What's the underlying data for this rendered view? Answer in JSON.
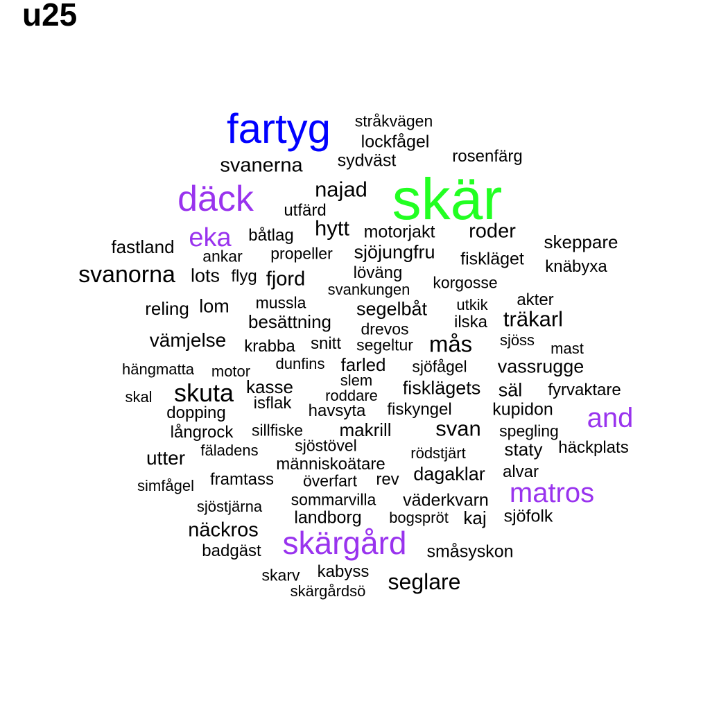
{
  "title": "u25",
  "colors": {
    "black": "#000000",
    "blue": "#0000ff",
    "green": "#22ff22",
    "purple": "#9933ee"
  },
  "words": [
    {
      "text": "skär",
      "color": "green"
    },
    {
      "text": "fartyg",
      "color": "blue"
    },
    {
      "text": "däck",
      "color": "purple"
    },
    {
      "text": "eka",
      "color": "purple"
    },
    {
      "text": "and",
      "color": "purple"
    },
    {
      "text": "matros",
      "color": "purple"
    },
    {
      "text": "skärgård",
      "color": "purple"
    },
    {
      "text": "stråkvägen",
      "color": "black"
    },
    {
      "text": "lockfågel",
      "color": "black"
    },
    {
      "text": "rosenfärg",
      "color": "black"
    },
    {
      "text": "sydväst",
      "color": "black"
    },
    {
      "text": "svanerna",
      "color": "black"
    },
    {
      "text": "najad",
      "color": "black"
    },
    {
      "text": "utfärd",
      "color": "black"
    },
    {
      "text": "hytt",
      "color": "black"
    },
    {
      "text": "motorjakt",
      "color": "black"
    },
    {
      "text": "roder",
      "color": "black"
    },
    {
      "text": "båtlag",
      "color": "black"
    },
    {
      "text": "skeppare",
      "color": "black"
    },
    {
      "text": "fastland",
      "color": "black"
    },
    {
      "text": "propeller",
      "color": "black"
    },
    {
      "text": "sjöjungfru",
      "color": "black"
    },
    {
      "text": "ankar",
      "color": "black"
    },
    {
      "text": "fiskläget",
      "color": "black"
    },
    {
      "text": "knäbyxa",
      "color": "black"
    },
    {
      "text": "svanorna",
      "color": "black"
    },
    {
      "text": "lots",
      "color": "black"
    },
    {
      "text": "flyg",
      "color": "black"
    },
    {
      "text": "fjord",
      "color": "black"
    },
    {
      "text": "löväng",
      "color": "black"
    },
    {
      "text": "korgosse",
      "color": "black"
    },
    {
      "text": "svankungen",
      "color": "black"
    },
    {
      "text": "akter",
      "color": "black"
    },
    {
      "text": "reling",
      "color": "black"
    },
    {
      "text": "lom",
      "color": "black"
    },
    {
      "text": "mussla",
      "color": "black"
    },
    {
      "text": "segelbåt",
      "color": "black"
    },
    {
      "text": "utkik",
      "color": "black"
    },
    {
      "text": "träkarl",
      "color": "black"
    },
    {
      "text": "besättning",
      "color": "black"
    },
    {
      "text": "ilska",
      "color": "black"
    },
    {
      "text": "drevos",
      "color": "black"
    },
    {
      "text": "vämjelse",
      "color": "black"
    },
    {
      "text": "sjöss",
      "color": "black"
    },
    {
      "text": "krabba",
      "color": "black"
    },
    {
      "text": "snitt",
      "color": "black"
    },
    {
      "text": "segeltur",
      "color": "black"
    },
    {
      "text": "mås",
      "color": "black"
    },
    {
      "text": "mast",
      "color": "black"
    },
    {
      "text": "hängmatta",
      "color": "black"
    },
    {
      "text": "dunfins",
      "color": "black"
    },
    {
      "text": "farled",
      "color": "black"
    },
    {
      "text": "sjöfågel",
      "color": "black"
    },
    {
      "text": "vassrugge",
      "color": "black"
    },
    {
      "text": "motor",
      "color": "black"
    },
    {
      "text": "slem",
      "color": "black"
    },
    {
      "text": "skuta",
      "color": "black"
    },
    {
      "text": "kasse",
      "color": "black"
    },
    {
      "text": "fisklägets",
      "color": "black"
    },
    {
      "text": "säl",
      "color": "black"
    },
    {
      "text": "fyrvaktare",
      "color": "black"
    },
    {
      "text": "skal",
      "color": "black"
    },
    {
      "text": "roddare",
      "color": "black"
    },
    {
      "text": "isflak",
      "color": "black"
    },
    {
      "text": "havsyta",
      "color": "black"
    },
    {
      "text": "fiskyngel",
      "color": "black"
    },
    {
      "text": "kupidon",
      "color": "black"
    },
    {
      "text": "dopping",
      "color": "black"
    },
    {
      "text": "långrock",
      "color": "black"
    },
    {
      "text": "sillfiske",
      "color": "black"
    },
    {
      "text": "makrill",
      "color": "black"
    },
    {
      "text": "svan",
      "color": "black"
    },
    {
      "text": "spegling",
      "color": "black"
    },
    {
      "text": "sjöstövel",
      "color": "black"
    },
    {
      "text": "staty",
      "color": "black"
    },
    {
      "text": "häckplats",
      "color": "black"
    },
    {
      "text": "fäladens",
      "color": "black"
    },
    {
      "text": "rödstjärt",
      "color": "black"
    },
    {
      "text": "utter",
      "color": "black"
    },
    {
      "text": "människoätare",
      "color": "black"
    },
    {
      "text": "rev",
      "color": "black"
    },
    {
      "text": "dagaklar",
      "color": "black"
    },
    {
      "text": "alvar",
      "color": "black"
    },
    {
      "text": "framtass",
      "color": "black"
    },
    {
      "text": "överfart",
      "color": "black"
    },
    {
      "text": "simfågel",
      "color": "black"
    },
    {
      "text": "sommarvilla",
      "color": "black"
    },
    {
      "text": "väderkvarn",
      "color": "black"
    },
    {
      "text": "sjöstjärna",
      "color": "black"
    },
    {
      "text": "landborg",
      "color": "black"
    },
    {
      "text": "bogspröt",
      "color": "black"
    },
    {
      "text": "kaj",
      "color": "black"
    },
    {
      "text": "sjöfolk",
      "color": "black"
    },
    {
      "text": "näckros",
      "color": "black"
    },
    {
      "text": "badgäst",
      "color": "black"
    },
    {
      "text": "småsyskon",
      "color": "black"
    },
    {
      "text": "kabyss",
      "color": "black"
    },
    {
      "text": "skarv",
      "color": "black"
    },
    {
      "text": "seglare",
      "color": "black"
    },
    {
      "text": "skärgårdsö",
      "color": "black"
    }
  ]
}
